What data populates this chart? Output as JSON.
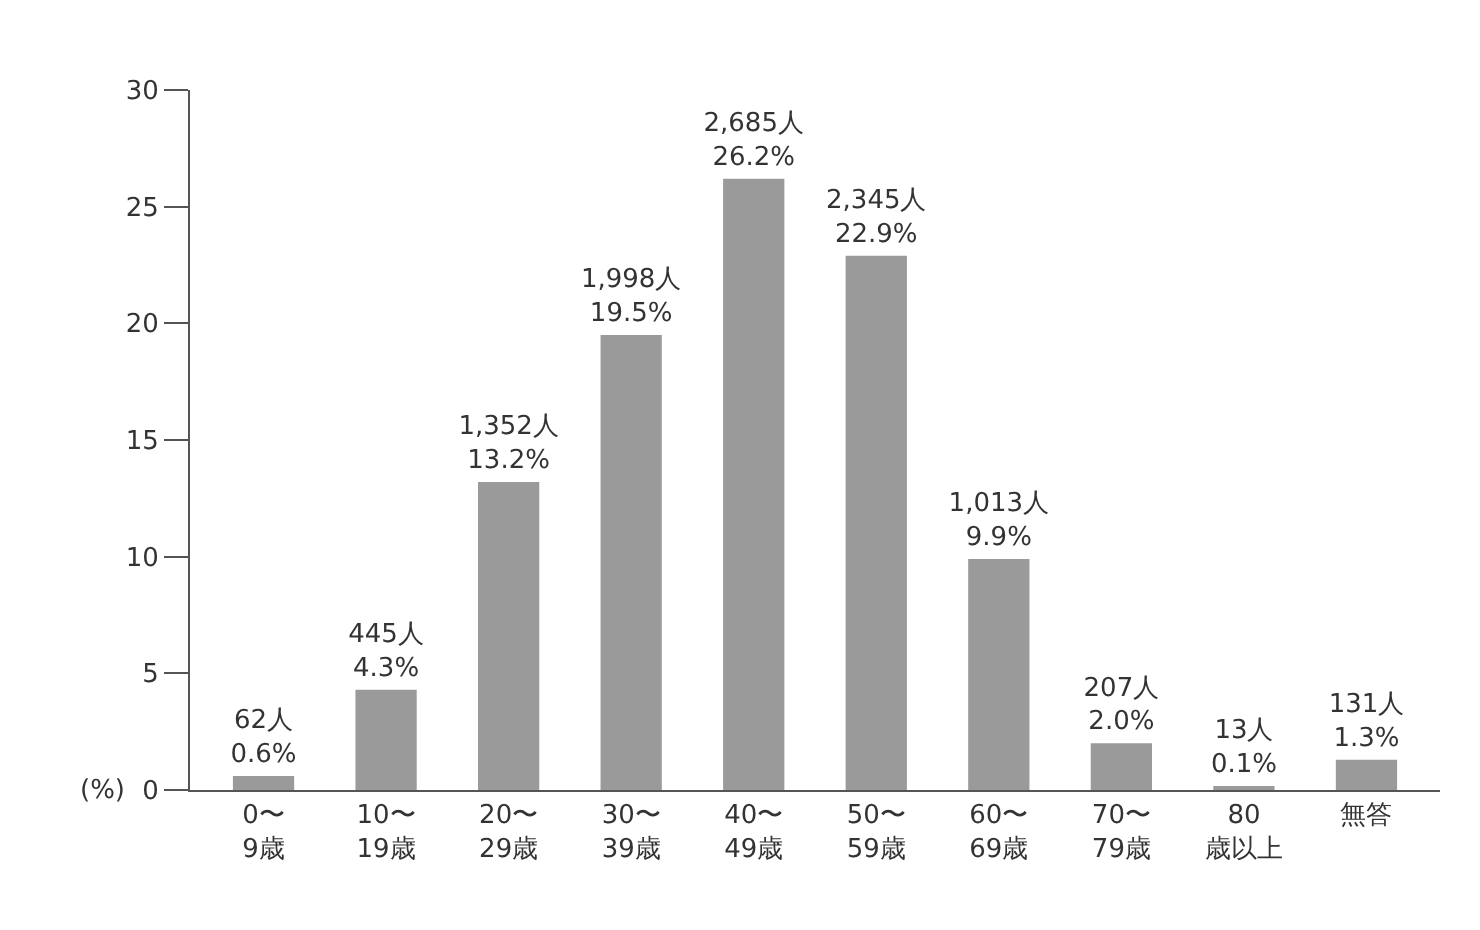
{
  "chart_data": {
    "type": "bar",
    "ylabel": "(%)",
    "categories": [
      "0〜\n9歳",
      "10〜\n19歳",
      "20〜\n29歳",
      "30〜\n39歳",
      "40〜\n49歳",
      "50〜\n59歳",
      "60〜\n69歳",
      "70〜\n79歳",
      "80歳以上",
      "無答"
    ],
    "values": [
      0.6,
      4.3,
      13.2,
      19.5,
      26.2,
      22.9,
      9.9,
      2.0,
      0.1,
      1.3
    ],
    "value_labels": [
      "62人\n0.6%",
      "445人\n4.3%",
      "1,352人\n13.2%",
      "1,998人\n19.5%",
      "2,685人\n26.2%",
      "2,345人\n22.9%",
      "1,013人\n9.9%",
      "207人\n2.0%",
      "13人\n0.1%",
      "131人\n1.3%"
    ],
    "color": "#9a9a9a",
    "ylim": [
      0,
      30
    ],
    "yticks": [
      0,
      5,
      10,
      15,
      20,
      25,
      30
    ]
  }
}
